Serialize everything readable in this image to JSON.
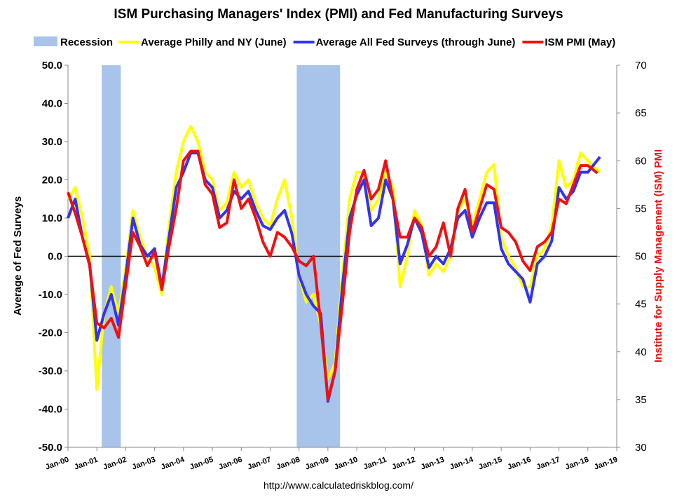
{
  "chart_data": {
    "type": "line",
    "title": "ISM Purchasing Managers' Index (PMI) and Fed Manufacturing Surveys",
    "y_label": "Average of Fed Surveys",
    "y2_label": "Institute for Supply Management (ISM) PMI",
    "source": "http://www.calculatedriskblog.com/",
    "xlim": [
      2000,
      2019
    ],
    "xticks": [
      {
        "value": 2000,
        "label": "Jan-00"
      },
      {
        "value": 2001,
        "label": "Jan-01"
      },
      {
        "value": 2002,
        "label": "Jan-02"
      },
      {
        "value": 2003,
        "label": "Jan-03"
      },
      {
        "value": 2004,
        "label": "Jan-04"
      },
      {
        "value": 2005,
        "label": "Jan-05"
      },
      {
        "value": 2006,
        "label": "Jan-06"
      },
      {
        "value": 2007,
        "label": "Jan-07"
      },
      {
        "value": 2008,
        "label": "Jan-08"
      },
      {
        "value": 2009,
        "label": "Jan-09"
      },
      {
        "value": 2010,
        "label": "Jan-10"
      },
      {
        "value": 2011,
        "label": "Jan-11"
      },
      {
        "value": 2012,
        "label": "Jan-12"
      },
      {
        "value": 2013,
        "label": "Jan-13"
      },
      {
        "value": 2014,
        "label": "Jan-14"
      },
      {
        "value": 2015,
        "label": "Jan-15"
      },
      {
        "value": 2016,
        "label": "Jan-16"
      },
      {
        "value": 2017,
        "label": "Jan-17"
      },
      {
        "value": 2018,
        "label": "Jan-18"
      },
      {
        "value": 2019,
        "label": "Jan-19"
      }
    ],
    "ylim": [
      -50,
      50
    ],
    "yticks": [
      {
        "value": -50,
        "label": "-50.0"
      },
      {
        "value": -40,
        "label": "-40.0"
      },
      {
        "value": -30,
        "label": "-30.0"
      },
      {
        "value": -20,
        "label": "-20.0"
      },
      {
        "value": -10,
        "label": "-10.0"
      },
      {
        "value": 0,
        "label": "0.0"
      },
      {
        "value": 10,
        "label": "10.0"
      },
      {
        "value": 20,
        "label": "20.0"
      },
      {
        "value": 30,
        "label": "30.0"
      },
      {
        "value": 40,
        "label": "40.0"
      },
      {
        "value": 50,
        "label": "50.0"
      }
    ],
    "y2lim": [
      30,
      70
    ],
    "y2ticks": [
      30,
      35,
      40,
      45,
      50,
      55,
      60,
      65,
      70
    ],
    "bands": {
      "name": "Recession",
      "color": "#a9c4ea",
      "ranges": [
        [
          2001.17,
          2001.83
        ],
        [
          2007.92,
          2009.42
        ]
      ]
    },
    "series": [
      {
        "name": "Average Philly and NY (June)",
        "color": "#ffff00",
        "x": [
          2000,
          2000.25,
          2000.5,
          2000.75,
          2001,
          2001.25,
          2001.5,
          2001.75,
          2002,
          2002.25,
          2002.5,
          2002.75,
          2003,
          2003.25,
          2003.5,
          2003.75,
          2004,
          2004.25,
          2004.5,
          2004.75,
          2005,
          2005.25,
          2005.5,
          2005.75,
          2006,
          2006.25,
          2006.5,
          2006.75,
          2007,
          2007.25,
          2007.5,
          2007.75,
          2008,
          2008.25,
          2008.5,
          2008.75,
          2009,
          2009.25,
          2009.5,
          2009.75,
          2010,
          2010.25,
          2010.5,
          2010.75,
          2011,
          2011.25,
          2011.5,
          2011.75,
          2012,
          2012.25,
          2012.5,
          2012.75,
          2013,
          2013.25,
          2013.5,
          2013.75,
          2014,
          2014.25,
          2014.5,
          2014.75,
          2015,
          2015.25,
          2015.5,
          2015.75,
          2016,
          2016.25,
          2016.5,
          2016.75,
          2017,
          2017.25,
          2017.5,
          2017.75,
          2018,
          2018.42
        ],
        "values": [
          15,
          18,
          10,
          0,
          -35,
          -15,
          -8,
          -15,
          -3,
          12,
          5,
          0,
          -3,
          -10,
          8,
          22,
          30,
          34,
          30,
          22,
          20,
          12,
          14,
          22,
          18,
          20,
          14,
          10,
          8,
          15,
          20,
          10,
          -5,
          -12,
          -10,
          -18,
          -32,
          -28,
          -5,
          15,
          22,
          22,
          12,
          15,
          22,
          18,
          -8,
          0,
          12,
          8,
          -5,
          -2,
          -4,
          0,
          12,
          15,
          8,
          15,
          22,
          24,
          5,
          0,
          -3,
          -8,
          -8,
          0,
          2,
          8,
          25,
          18,
          20,
          27,
          25,
          22
        ]
      },
      {
        "name": "Average All Fed Surveys (through June)",
        "color": "#3333ee",
        "x": [
          2000,
          2000.25,
          2000.5,
          2000.75,
          2001,
          2001.25,
          2001.5,
          2001.75,
          2002,
          2002.25,
          2002.5,
          2002.75,
          2003,
          2003.25,
          2003.5,
          2003.75,
          2004,
          2004.25,
          2004.5,
          2004.75,
          2005,
          2005.25,
          2005.5,
          2005.75,
          2006,
          2006.25,
          2006.5,
          2006.75,
          2007,
          2007.25,
          2007.5,
          2007.75,
          2008,
          2008.25,
          2008.5,
          2008.75,
          2009,
          2009.25,
          2009.5,
          2009.75,
          2010,
          2010.25,
          2010.5,
          2010.75,
          2011,
          2011.25,
          2011.5,
          2011.75,
          2012,
          2012.25,
          2012.5,
          2012.75,
          2013,
          2013.25,
          2013.5,
          2013.75,
          2014,
          2014.25,
          2014.5,
          2014.75,
          2015,
          2015.25,
          2015.5,
          2015.75,
          2016,
          2016.25,
          2016.5,
          2016.75,
          2017,
          2017.25,
          2017.5,
          2017.75,
          2018,
          2018.42
        ],
        "values": [
          10,
          15,
          5,
          -2,
          -22,
          -15,
          -10,
          -18,
          -5,
          10,
          3,
          0,
          2,
          -8,
          5,
          18,
          22,
          27,
          27,
          20,
          18,
          10,
          12,
          17,
          15,
          17,
          12,
          8,
          7,
          10,
          12,
          6,
          -5,
          -10,
          -13,
          -15,
          -38,
          -30,
          -8,
          10,
          16,
          20,
          8,
          10,
          20,
          15,
          -2,
          3,
          10,
          6,
          -3,
          0,
          -2,
          2,
          10,
          12,
          5,
          10,
          14,
          14,
          2,
          -2,
          -4,
          -6,
          -12,
          -2,
          0,
          4,
          18,
          15,
          17,
          22,
          22,
          26
        ]
      },
      {
        "name": "ISM PMI (May)",
        "color": "#ee1111",
        "axis": "y2",
        "x": [
          2000,
          2000.25,
          2000.5,
          2000.75,
          2001,
          2001.25,
          2001.5,
          2001.75,
          2002,
          2002.25,
          2002.5,
          2002.75,
          2003,
          2003.25,
          2003.5,
          2003.75,
          2004,
          2004.25,
          2004.5,
          2004.75,
          2005,
          2005.25,
          2005.5,
          2005.75,
          2006,
          2006.25,
          2006.5,
          2006.75,
          2007,
          2007.25,
          2007.5,
          2007.75,
          2008,
          2008.25,
          2008.5,
          2008.75,
          2009,
          2009.25,
          2009.5,
          2009.75,
          2010,
          2010.25,
          2010.5,
          2010.75,
          2011,
          2011.25,
          2011.5,
          2011.75,
          2012,
          2012.25,
          2012.5,
          2012.75,
          2013,
          2013.25,
          2013.5,
          2013.75,
          2014,
          2014.25,
          2014.5,
          2014.75,
          2015,
          2015.25,
          2015.5,
          2015.75,
          2016,
          2016.25,
          2016.5,
          2016.75,
          2017,
          2017.25,
          2017.5,
          2017.75,
          2018,
          2018.33
        ],
        "values": [
          56.7,
          54.5,
          52,
          49,
          43,
          42.5,
          43.5,
          41.5,
          47,
          52.5,
          51,
          49,
          50.5,
          46.5,
          51,
          55,
          60,
          61,
          61,
          57.5,
          56.5,
          53,
          53.5,
          58,
          55,
          56,
          54,
          51.5,
          50,
          52.5,
          52,
          51,
          49.5,
          49,
          50,
          43,
          35,
          38,
          45,
          52.5,
          57,
          59,
          56,
          57,
          60,
          56,
          52,
          52,
          54,
          53,
          50,
          51,
          53.5,
          50,
          55,
          57,
          52.5,
          55,
          57.5,
          57,
          53,
          52.5,
          51.5,
          49.5,
          48.5,
          51,
          51.5,
          52.5,
          56,
          55.5,
          57.5,
          59.5,
          59.5,
          58.7
        ]
      }
    ]
  }
}
